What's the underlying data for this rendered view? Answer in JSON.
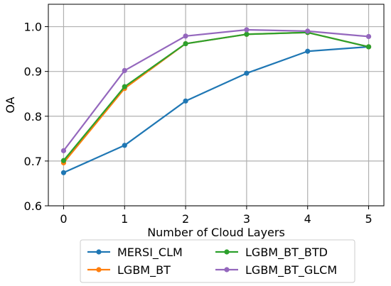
{
  "chart_data": {
    "type": "line",
    "title": "",
    "xlabel": "Number of Cloud Layers",
    "ylabel": "OA",
    "x": [
      0,
      1,
      2,
      3,
      4,
      5
    ],
    "xlim": [
      -0.25,
      5.25
    ],
    "ylim": [
      0.6,
      1.05
    ],
    "x_ticks": [
      "0",
      "1",
      "2",
      "3",
      "4",
      "5"
    ],
    "y_ticks": [
      "0.6",
      "0.7",
      "0.8",
      "0.9",
      "1.0"
    ],
    "grid": true,
    "legend_position": "bottom, outside plot",
    "series": [
      {
        "name": "MERSI_CLM",
        "color": "#1f77b4",
        "values": [
          0.674,
          0.735,
          0.834,
          0.896,
          0.945,
          0.955
        ]
      },
      {
        "name": "LGBM_BT",
        "color": "#ff7f0e",
        "values": [
          0.696,
          0.862,
          0.962,
          0.983,
          0.987,
          0.955
        ]
      },
      {
        "name": "LGBM_BT_BTD",
        "color": "#2ca02c",
        "values": [
          0.701,
          0.866,
          0.962,
          0.983,
          0.987,
          0.955
        ]
      },
      {
        "name": "LGBM_BT_GLCM",
        "color": "#9467bd",
        "values": [
          0.723,
          0.902,
          0.979,
          0.993,
          0.99,
          0.978
        ]
      }
    ]
  }
}
